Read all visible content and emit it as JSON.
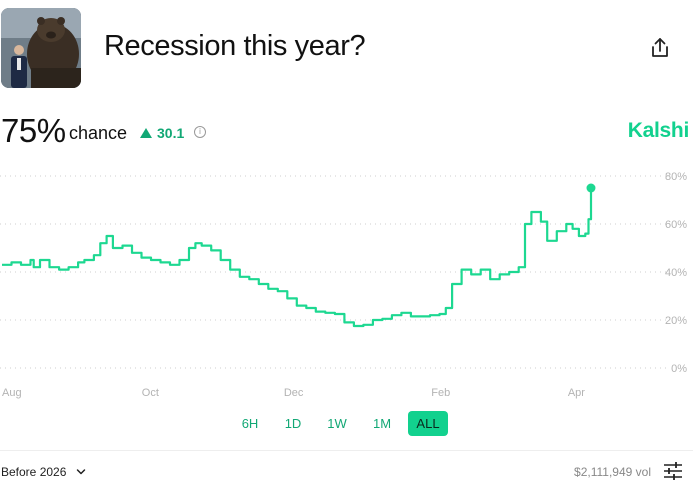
{
  "market": {
    "title": "Recession this year?",
    "probability": "75%",
    "chance_label": "chance",
    "delta": "30.1",
    "brand": "Kalshi"
  },
  "icons": {
    "share": "share-icon",
    "info": "info-icon",
    "delta": "triangle-up-icon",
    "dropdown": "chevron-down-icon",
    "settings": "sliders-icon"
  },
  "colors": {
    "line": "#1dd891",
    "accent": "#12a875",
    "brand": "#12d18e"
  },
  "ranges": [
    {
      "label": "6H",
      "active": false
    },
    {
      "label": "1D",
      "active": false
    },
    {
      "label": "1W",
      "active": false
    },
    {
      "label": "1M",
      "active": false
    },
    {
      "label": "ALL",
      "active": true
    }
  ],
  "footer": {
    "filter": "Before 2026",
    "volume": "$2,111,949 vol"
  },
  "chart_data": {
    "type": "line",
    "title": "",
    "xlabel": "",
    "ylabel": "",
    "y_unit": "%",
    "ylim": [
      0,
      80
    ],
    "yticks": [
      0,
      20,
      40,
      60,
      80
    ],
    "ytick_labels": [
      "0%",
      "20%",
      "40%",
      "60%",
      "80%"
    ],
    "xticks": [
      "Aug",
      "Oct",
      "Dec",
      "Feb",
      "Apr"
    ],
    "xlim": [
      0,
      100
    ],
    "xtick_positions": [
      1.5,
      23.4,
      46.0,
      69.2,
      90.6
    ],
    "grid": "horizontal dotted",
    "legend": "none",
    "series": [
      {
        "values": [
          [
            0,
            43
          ],
          [
            1.5,
            44
          ],
          [
            3,
            43
          ],
          [
            4.5,
            45
          ],
          [
            5,
            42
          ],
          [
            6,
            45
          ],
          [
            7.5,
            42
          ],
          [
            9,
            41
          ],
          [
            10.5,
            42
          ],
          [
            12,
            44
          ],
          [
            13,
            45
          ],
          [
            14.5,
            47
          ],
          [
            15.5,
            52
          ],
          [
            16.5,
            55
          ],
          [
            17.5,
            50
          ],
          [
            19,
            51
          ],
          [
            20.5,
            48
          ],
          [
            22,
            46
          ],
          [
            23.5,
            45
          ],
          [
            25,
            44
          ],
          [
            26.5,
            43
          ],
          [
            28,
            45
          ],
          [
            29.5,
            50
          ],
          [
            30.5,
            52
          ],
          [
            31.5,
            51
          ],
          [
            33,
            49
          ],
          [
            34.5,
            45
          ],
          [
            36,
            41
          ],
          [
            37.5,
            38
          ],
          [
            39,
            37
          ],
          [
            40.5,
            35
          ],
          [
            42,
            33
          ],
          [
            43.5,
            32
          ],
          [
            45,
            29
          ],
          [
            46.5,
            26
          ],
          [
            48,
            25
          ],
          [
            49.5,
            23.5
          ],
          [
            51,
            23
          ],
          [
            52.5,
            22.5
          ],
          [
            54,
            19
          ],
          [
            55.5,
            17.5
          ],
          [
            57,
            18
          ],
          [
            58.5,
            20
          ],
          [
            60,
            20.5
          ],
          [
            61.5,
            22
          ],
          [
            63,
            23
          ],
          [
            64.5,
            21.5
          ],
          [
            66,
            21.5
          ],
          [
            67.5,
            22
          ],
          [
            69,
            22.5
          ],
          [
            70,
            25
          ],
          [
            71,
            35
          ],
          [
            72.5,
            41
          ],
          [
            74,
            39
          ],
          [
            75.5,
            41
          ],
          [
            77,
            37
          ],
          [
            78.5,
            39
          ],
          [
            80,
            40
          ],
          [
            81.5,
            42
          ],
          [
            82.5,
            60
          ],
          [
            83.5,
            65
          ],
          [
            85,
            61
          ],
          [
            86,
            53
          ],
          [
            87.5,
            57
          ],
          [
            89,
            60
          ],
          [
            90,
            58
          ],
          [
            91,
            55
          ],
          [
            92,
            56
          ],
          [
            92.5,
            62
          ],
          [
            92.9,
            75
          ]
        ]
      }
    ]
  }
}
